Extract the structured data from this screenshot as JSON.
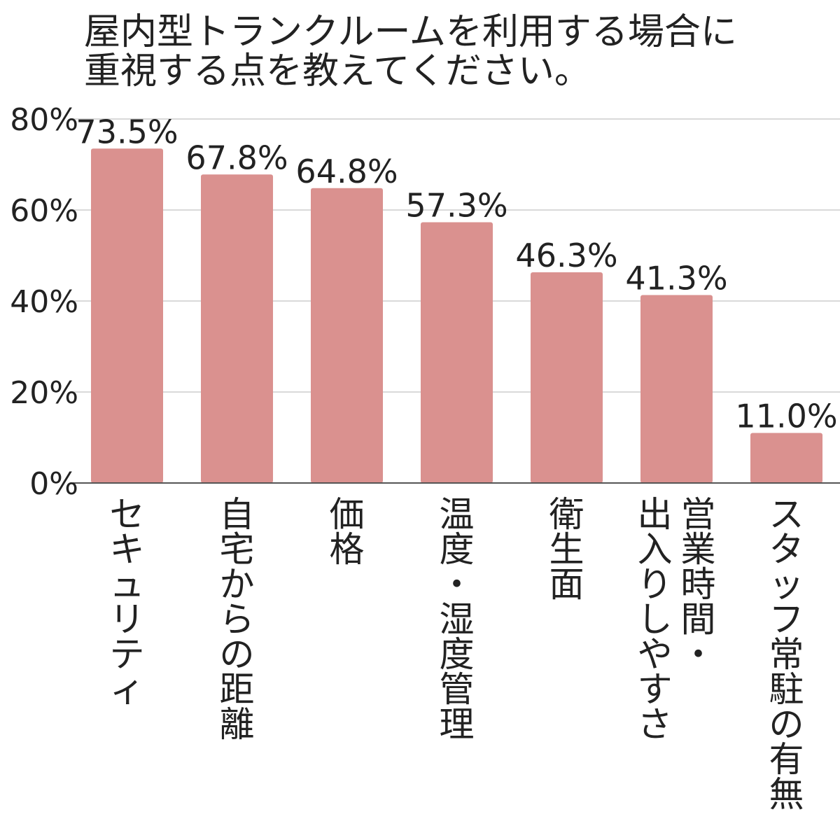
{
  "chart_data": {
    "type": "bar",
    "title_lines": [
      "屋内型トランクルームを利用する場合に",
      "重視する点を教えてください。"
    ],
    "categories": [
      "セキュリティ",
      "自宅からの距離",
      "価格",
      "温度・湿度管理",
      "衛生面",
      "営業時間・出入りしやすさ",
      "スタッフ常駐の有無"
    ],
    "category_label_columns": [
      [
        "セキュリティ"
      ],
      [
        "自宅からの距離"
      ],
      [
        "価格"
      ],
      [
        "温度・湿度管理"
      ],
      [
        "衛生面"
      ],
      [
        "出入りしやすさ",
        "営業時間・"
      ],
      [
        "スタッフ常駐の有無"
      ]
    ],
    "values": [
      73.5,
      67.8,
      64.8,
      57.3,
      46.3,
      41.3,
      11.0
    ],
    "value_labels": [
      "73.5%",
      "67.8%",
      "64.8%",
      "57.3%",
      "46.3%",
      "41.3%",
      "11.0%"
    ],
    "ylim": [
      0,
      80
    ],
    "yticks": [
      0,
      20,
      40,
      60,
      80
    ],
    "ytick_labels": [
      "0%",
      "20%",
      "40%",
      "60%",
      "80%"
    ],
    "xlabel": "",
    "ylabel": "",
    "grid": true,
    "legend": "none",
    "colors": {
      "bar": "#da918f",
      "grid": "#d9d9d9",
      "axis": "#555555",
      "text": "#222222"
    }
  }
}
